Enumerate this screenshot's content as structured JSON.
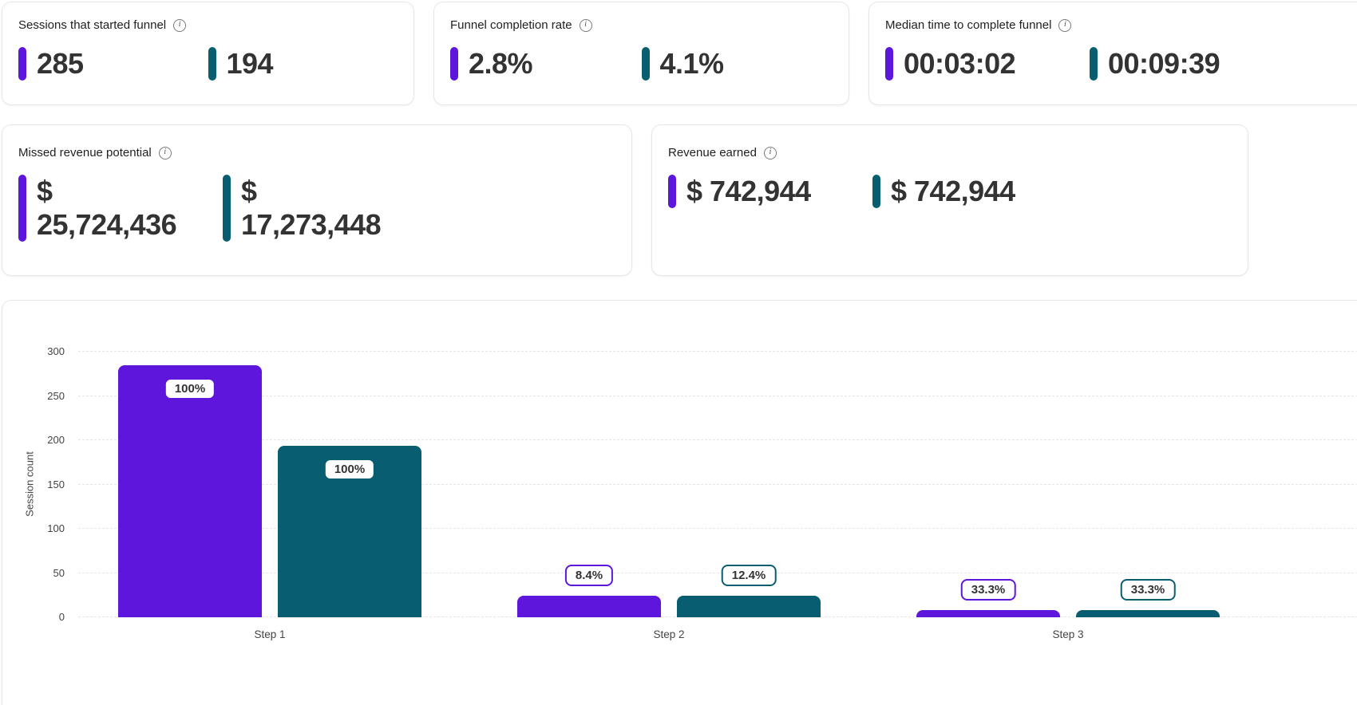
{
  "colors": {
    "purple": "#5e16dd",
    "teal": "#085e70",
    "text": "#333333"
  },
  "cards": [
    {
      "title": "Sessions that started funnel",
      "values": [
        "285",
        "194"
      ]
    },
    {
      "title": "Funnel completion rate",
      "values": [
        "2.8%",
        "4.1%"
      ]
    },
    {
      "title": "Median time to complete funnel",
      "values": [
        "00:03:02",
        "00:09:39"
      ]
    },
    {
      "title": "Missed revenue potential",
      "values": [
        "$ 25,724,436",
        "$ 17,273,448"
      ]
    },
    {
      "title": "Revenue earned",
      "values": [
        "$ 742,944",
        "$ 742,944"
      ]
    }
  ],
  "chart_data": {
    "type": "bar",
    "title": "",
    "xlabel": "",
    "ylabel": "Session count",
    "ylim": [
      0,
      300
    ],
    "yticks": [
      0,
      50,
      100,
      150,
      200,
      250,
      300
    ],
    "categories": [
      "Step 1",
      "Step 2",
      "Step 3"
    ],
    "series": [
      {
        "name": "purple",
        "color": "#5e16dd",
        "values": [
          285,
          24,
          8
        ],
        "percent_labels": [
          "100%",
          "8.4%",
          "33.3%"
        ]
      },
      {
        "name": "teal",
        "color": "#085e70",
        "values": [
          194,
          24,
          8
        ],
        "percent_labels": [
          "100%",
          "12.4%",
          "33.3%"
        ]
      }
    ],
    "grid": true,
    "legend": false
  }
}
